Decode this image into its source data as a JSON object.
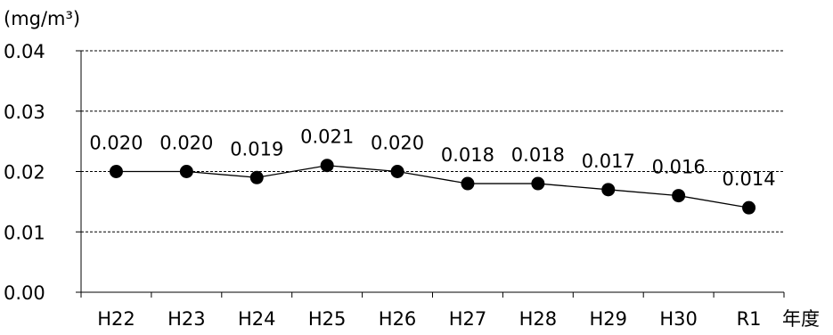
{
  "chart_data": {
    "type": "line",
    "ylabel": "(mg/m³)",
    "xlabel": "年度",
    "categories": [
      "H22",
      "H23",
      "H24",
      "H25",
      "H26",
      "H27",
      "H28",
      "H29",
      "H30",
      "R1"
    ],
    "values": [
      0.02,
      0.02,
      0.019,
      0.021,
      0.02,
      0.018,
      0.018,
      0.017,
      0.016,
      0.014
    ],
    "data_labels": [
      "0.020",
      "0.020",
      "0.019",
      "0.021",
      "0.020",
      "0.018",
      "0.018",
      "0.017",
      "0.016",
      "0.014"
    ],
    "yticks": [
      "0.00",
      "0.01",
      "0.02",
      "0.03",
      "0.04"
    ],
    "ylim": [
      0,
      0.04
    ],
    "grid": "horizontal dashed",
    "line_color": "#000000",
    "marker_color": "#000000"
  }
}
